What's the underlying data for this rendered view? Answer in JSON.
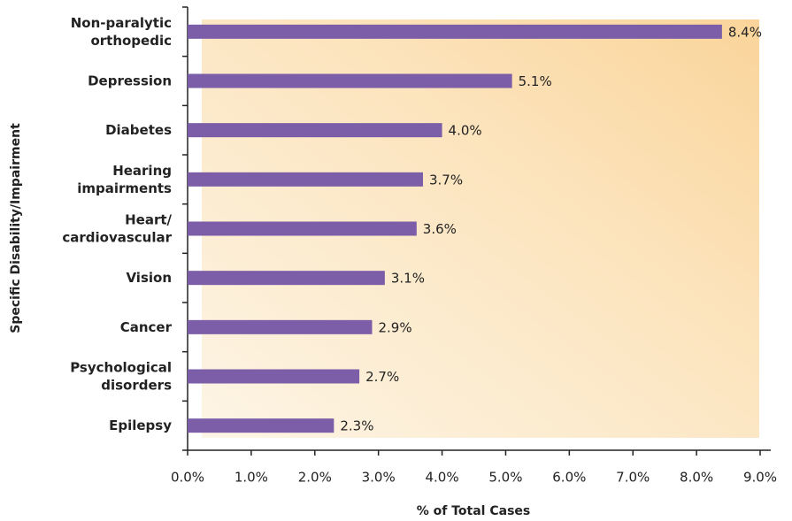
{
  "chart_data": {
    "type": "barh",
    "x_label": "% of Total Cases",
    "y_label": "Specific Disability/Impairment",
    "categories": [
      "Non-paralytic\northopedic",
      "Depression",
      "Diabetes",
      "Hearing\nimpairments",
      "Heart/\ncardiovascular",
      "Vision",
      "Cancer",
      "Psychological\ndisorders",
      "Epilepsy"
    ],
    "values": [
      8.4,
      5.1,
      4.0,
      3.7,
      3.6,
      3.1,
      2.9,
      2.7,
      2.3
    ],
    "value_labels": [
      "8.4%",
      "5.1%",
      "4.0%",
      "3.7%",
      "3.6%",
      "3.1%",
      "2.9%",
      "2.7%",
      "2.3%"
    ],
    "color": "#7b5ea7",
    "xlim": [
      0,
      9
    ],
    "xticks": [
      {
        "value": 0,
        "label": "0.0%"
      },
      {
        "value": 1,
        "label": "1.0%"
      },
      {
        "value": 2,
        "label": "2.0%"
      },
      {
        "value": 3,
        "label": "3.0%"
      },
      {
        "value": 4,
        "label": "4.0%"
      },
      {
        "value": 5,
        "label": "5.0%"
      },
      {
        "value": 6,
        "label": "6.0%"
      },
      {
        "value": 7,
        "label": "7.0%"
      },
      {
        "value": 8,
        "label": "8.0%"
      },
      {
        "value": 9,
        "label": "9.0%"
      }
    ]
  }
}
